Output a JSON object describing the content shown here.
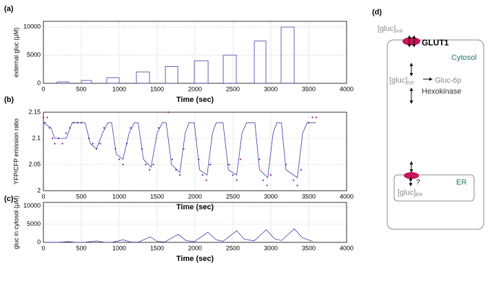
{
  "chart_data": [
    {
      "type": "bar",
      "panel_label": "(a)",
      "ylabel": "external gluc (μM)",
      "xlabel": "Time (sec)",
      "color": "#3a3aa8",
      "x_ranges": [
        [
          182,
          336
        ],
        [
          500,
          636
        ],
        [
          836,
          1000
        ],
        [
          1227,
          1400
        ],
        [
          1609,
          1773
        ],
        [
          1991,
          2173
        ],
        [
          2373,
          2545
        ],
        [
          2782,
          2936
        ],
        [
          3136,
          3309
        ]
      ],
      "values": [
        250,
        500,
        1000,
        2000,
        3000,
        4000,
        5000,
        7500,
        10000
      ],
      "xlim": [
        0,
        4000
      ],
      "xticks": [
        0,
        500,
        1000,
        1500,
        2000,
        2500,
        3000,
        3500,
        4000
      ],
      "ylim": [
        0,
        11000
      ],
      "yticks": [
        0,
        5000,
        10000
      ],
      "grid": true
    },
    {
      "type": "line",
      "panel_label": "(b)",
      "ylabel": "YFP/CFP emission ratio",
      "xlabel": "Time (sec)",
      "series": [
        {
          "mode": "markers",
          "color": "#a020a0",
          "x": [
            0,
            20,
            50,
            80,
            120,
            150,
            200,
            250,
            300,
            350,
            400,
            450,
            500,
            600,
            650,
            700,
            750,
            800,
            950,
            1000,
            1050,
            1100,
            1150,
            1300,
            1350,
            1400,
            1450,
            1520,
            1650,
            1700,
            1750,
            1800,
            1850,
            2050,
            2100,
            2150,
            2200,
            2450,
            2500,
            2550,
            2600,
            2850,
            2900,
            2950,
            3000,
            3200,
            3300,
            3350,
            3400,
            3500,
            3550,
            3600
          ],
          "values": [
            2.14,
            2.13,
            2.14,
            2.12,
            2.1,
            2.09,
            2.1,
            2.09,
            2.11,
            2.12,
            2.13,
            2.13,
            2.13,
            2.1,
            2.09,
            2.08,
            2.09,
            2.12,
            2.08,
            2.06,
            2.05,
            2.09,
            2.12,
            2.08,
            2.05,
            2.04,
            2.05,
            2.12,
            2.15,
            2.06,
            2.04,
            2.03,
            2.08,
            2.06,
            2.03,
            2.02,
            2.05,
            2.05,
            2.03,
            2.02,
            2.06,
            2.06,
            2.02,
            2.01,
            2.03,
            2.05,
            2.02,
            2.01,
            2.04,
            2.13,
            2.14,
            2.14
          ]
        },
        {
          "mode": "line",
          "color": "#3a3aa8",
          "x": [
            0,
            100,
            150,
            300,
            380,
            550,
            620,
            700,
            780,
            850,
            900,
            960,
            1050,
            1130,
            1200,
            1250,
            1320,
            1420,
            1500,
            1570,
            1620,
            1690,
            1800,
            1870,
            1920,
            1990,
            2060,
            2160,
            2230,
            2280,
            2370,
            2440,
            2550,
            2620,
            2680,
            2790,
            2850,
            2960,
            3030,
            3080,
            3140,
            3200,
            3350,
            3420,
            3480,
            3600
          ],
          "values": [
            2.13,
            2.12,
            2.1,
            2.1,
            2.13,
            2.13,
            2.09,
            2.08,
            2.11,
            2.13,
            2.13,
            2.07,
            2.06,
            2.11,
            2.13,
            2.13,
            2.06,
            2.045,
            2.11,
            2.13,
            2.13,
            2.05,
            2.035,
            2.11,
            2.13,
            2.13,
            2.04,
            2.03,
            2.11,
            2.13,
            2.13,
            2.04,
            2.03,
            2.11,
            2.13,
            2.13,
            2.04,
            2.025,
            2.11,
            2.13,
            2.13,
            2.04,
            2.025,
            2.11,
            2.13,
            2.13
          ]
        }
      ],
      "xlim": [
        0,
        4000
      ],
      "xticks": [
        0,
        500,
        1000,
        1500,
        2000,
        2500,
        3000,
        3500,
        4000
      ],
      "ylim": [
        2,
        2.15
      ],
      "yticks": [
        2,
        2.05,
        {
          "value": 2.1,
          "label": "2.1"
        },
        2.15
      ],
      "grid": true
    },
    {
      "type": "line",
      "panel_label": "(c)",
      "ylabel": "gluc in cytosol (μM)",
      "xlabel": "Time (sec)",
      "series": [
        {
          "mode": "line",
          "color": "#3a3aa8",
          "x": [
            0,
            180,
            340,
            420,
            540,
            700,
            800,
            880,
            900,
            1050,
            1150,
            1250,
            1410,
            1500,
            1600,
            1780,
            1880,
            1990,
            2170,
            2280,
            2370,
            2550,
            2650,
            2780,
            2940,
            3050,
            3140,
            3310,
            3420,
            3550
          ],
          "values": [
            0,
            0,
            200,
            0,
            0,
            400,
            50,
            0,
            0,
            700,
            100,
            50,
            1500,
            300,
            100,
            2200,
            500,
            200,
            2800,
            700,
            300,
            3200,
            900,
            400,
            3500,
            1000,
            500,
            3700,
            1200,
            300
          ]
        }
      ],
      "xlim": [
        0,
        4000
      ],
      "xticks": [
        0,
        500,
        1000,
        1500,
        2000,
        2500,
        3000,
        3500,
        4000
      ],
      "ylim": [
        0,
        11000
      ],
      "yticks": [
        0,
        5000,
        10000
      ],
      "grid": true
    }
  ],
  "diagram": {
    "label": "(d)",
    "gluc_out": {
      "base": "[gluc]",
      "sub": "out"
    },
    "transporter": "GLUT1",
    "compartment": "Cytosol",
    "gluc_cyt": {
      "base": "[gluc]",
      "sub": "cyt"
    },
    "product": "Gluc-6p",
    "enzyme": "Hexokinase",
    "organelle": "ER",
    "gluc_er": {
      "base": "[gluc]",
      "sub": "ER"
    },
    "unknown": "?"
  }
}
